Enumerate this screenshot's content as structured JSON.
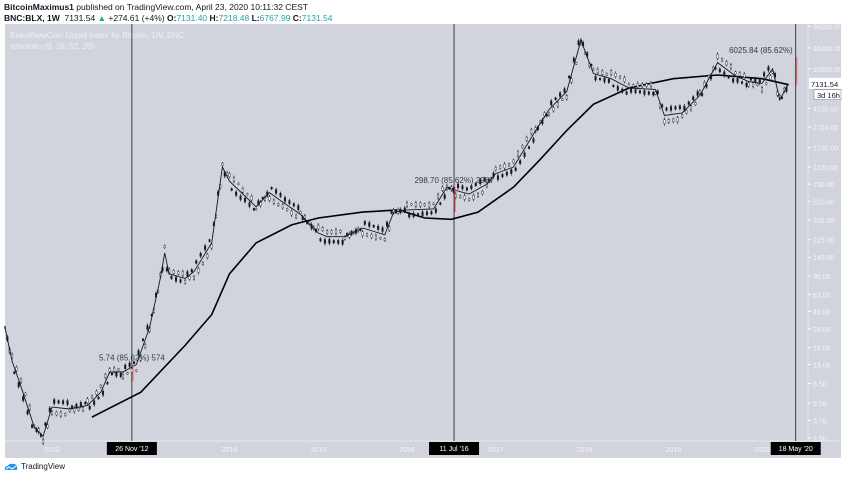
{
  "header": {
    "publisher": "BitcoinMaximus1",
    "published_text": "published on TradingView.com, April 23, 2020 10:11:32 CEST",
    "symbol": "BNC:BLX, 1W",
    "last": "7131.54",
    "change": "+274.61 (+4%)",
    "o_label": "O:",
    "o": "7131.40",
    "h_label": "H:",
    "h": "7218.48",
    "l_label": "L:",
    "l": "6767.99",
    "c_label": "C:",
    "c": "7131.54"
  },
  "legend": {
    "title": "BraveNewCoin Liquid Index for Bitcoin, 1W, BNC",
    "indicator": "Ichimoku (9, 26, 52, 26)"
  },
  "brand": "TradingView",
  "colors": {
    "background": "#d1d4dc",
    "price": "#131722",
    "up": "#26a69a",
    "marker": "#ef5350",
    "label_bg": "#000000"
  },
  "chart_data": {
    "type": "line",
    "yscale": "log",
    "ylim": [
      2.5,
      26000
    ],
    "xlim": [
      "2011-06",
      "2020-06"
    ],
    "grid": false,
    "y_ticks": [
      "26000.00",
      "16000.00",
      "10000.00",
      "4100.00",
      "2700.00",
      "1700.00",
      "1100.00",
      "750.00",
      "510.00",
      "335.00",
      "215.00",
      "145.00",
      "95.00",
      "63.00",
      "43.00",
      "29.00",
      "19.00",
      "13.00",
      "8.50",
      "5.50",
      "3.70",
      "2.50"
    ],
    "x_ticks": [
      "2012",
      "2014",
      "2015",
      "2016",
      "2017",
      "2018",
      "2019",
      "2020"
    ],
    "price_label": "7131.54",
    "countdown_label": "3d 16h",
    "series": [
      {
        "points": [
          [
            2011.47,
            30
          ],
          [
            2011.55,
            14
          ],
          [
            2011.65,
            8
          ],
          [
            2011.8,
            3.2
          ],
          [
            2011.9,
            2.6
          ],
          [
            2012.0,
            5
          ],
          [
            2012.2,
            4.8
          ],
          [
            2012.4,
            5.2
          ],
          [
            2012.55,
            7
          ],
          [
            2012.65,
            11
          ],
          [
            2012.8,
            11
          ],
          [
            2012.95,
            13
          ],
          [
            2013.1,
            30
          ],
          [
            2013.22,
            90
          ],
          [
            2013.27,
            160
          ],
          [
            2013.32,
            100
          ],
          [
            2013.5,
            90
          ],
          [
            2013.6,
            105
          ],
          [
            2013.8,
            200
          ],
          [
            2013.92,
            1100
          ],
          [
            2014.0,
            800
          ],
          [
            2014.15,
            600
          ],
          [
            2014.3,
            450
          ],
          [
            2014.45,
            620
          ],
          [
            2014.6,
            500
          ],
          [
            2014.8,
            380
          ],
          [
            2015.0,
            250
          ],
          [
            2015.1,
            230
          ],
          [
            2015.3,
            230
          ],
          [
            2015.5,
            280
          ],
          [
            2015.75,
            240
          ],
          [
            2015.85,
            400
          ],
          [
            2016.0,
            420
          ],
          [
            2016.3,
            430
          ],
          [
            2016.45,
            700
          ],
          [
            2016.55,
            650
          ],
          [
            2016.7,
            600
          ],
          [
            2016.9,
            750
          ],
          [
            2017.0,
            950
          ],
          [
            2017.2,
            1100
          ],
          [
            2017.45,
            2500
          ],
          [
            2017.6,
            4000
          ],
          [
            2017.8,
            6000
          ],
          [
            2017.96,
            19000
          ],
          [
            2018.1,
            9000
          ],
          [
            2018.3,
            8000
          ],
          [
            2018.5,
            6500
          ],
          [
            2018.8,
            6300
          ],
          [
            2018.9,
            3500
          ],
          [
            2019.1,
            3700
          ],
          [
            2019.3,
            5500
          ],
          [
            2019.5,
            11500
          ],
          [
            2019.7,
            8500
          ],
          [
            2019.85,
            7500
          ],
          [
            2020.0,
            7200
          ],
          [
            2020.12,
            10000
          ],
          [
            2020.2,
            5000
          ],
          [
            2020.3,
            7131.54
          ]
        ]
      },
      {
        "points": [
          [
            2012.45,
            4
          ],
          [
            2013.0,
            7
          ],
          [
            2013.5,
            20
          ],
          [
            2013.8,
            40
          ],
          [
            2014.0,
            100
          ],
          [
            2014.3,
            200
          ],
          [
            2014.7,
            300
          ],
          [
            2015.0,
            350
          ],
          [
            2015.5,
            400
          ],
          [
            2015.9,
            420
          ],
          [
            2016.2,
            350
          ],
          [
            2016.5,
            340
          ],
          [
            2016.8,
            400
          ],
          [
            2017.2,
            700
          ],
          [
            2017.5,
            1300
          ],
          [
            2017.8,
            2500
          ],
          [
            2018.1,
            4500
          ],
          [
            2018.5,
            6500
          ],
          [
            2019.0,
            8000
          ],
          [
            2019.5,
            8700
          ],
          [
            2020.0,
            8000
          ],
          [
            2020.3,
            7000
          ]
        ]
      }
    ],
    "vlines": [
      {
        "x": 2012.9,
        "label": "26 Nov '12"
      },
      {
        "x": 2016.53,
        "label": "11 Jul '16"
      },
      {
        "x": 2020.38,
        "label": "18 May '20"
      }
    ],
    "annotations": [
      {
        "x": 2012.9,
        "y": 13,
        "y_from": 9,
        "text": "5.74 (85.62%) 574"
      },
      {
        "x": 2016.53,
        "y": 700,
        "y_from": 400,
        "text": "298.70 (85.62%) 2987"
      },
      {
        "x": 2020.38,
        "y": 13000,
        "y_from": 7000,
        "text": "6025.84 (85.62%)"
      }
    ]
  }
}
